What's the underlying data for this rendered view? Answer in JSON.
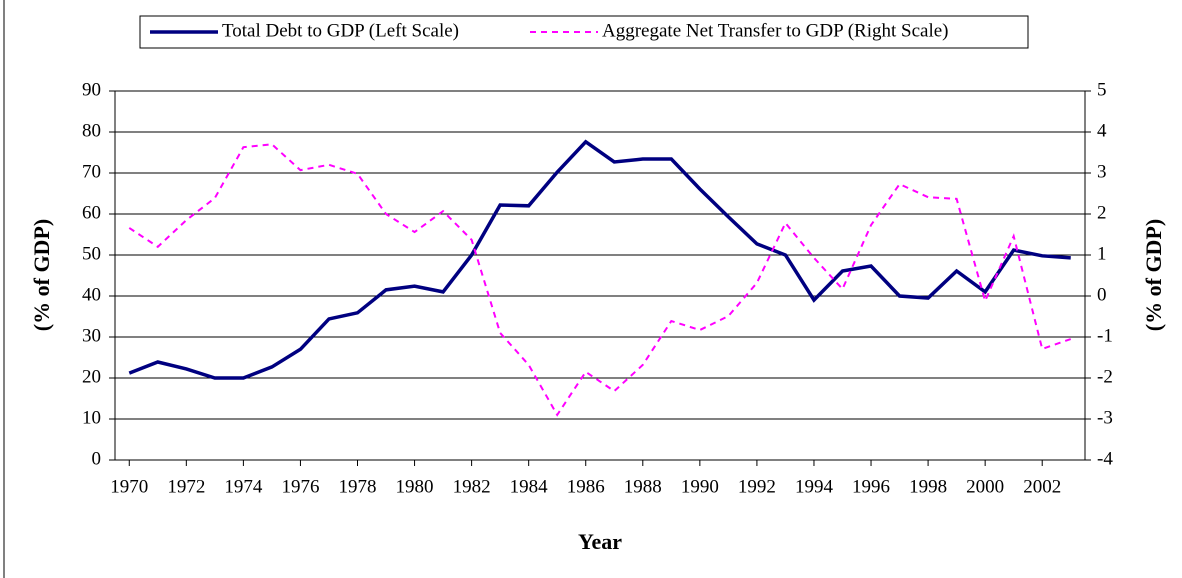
{
  "chart_data": {
    "type": "line",
    "x_label": "Year",
    "y_label": "(% of GDP)",
    "y2_label": "(% of GDP)",
    "x": [
      1970,
      1971,
      1972,
      1973,
      1974,
      1975,
      1976,
      1977,
      1978,
      1979,
      1980,
      1981,
      1982,
      1983,
      1984,
      1985,
      1986,
      1987,
      1988,
      1989,
      1990,
      1991,
      1992,
      1993,
      1994,
      1995,
      1996,
      1997,
      1998,
      1999,
      2000,
      2001,
      2002,
      2003
    ],
    "xlim": [
      1969.5,
      2003.5
    ],
    "xticks": [
      1970,
      1972,
      1974,
      1976,
      1978,
      1980,
      1982,
      1984,
      1986,
      1988,
      1990,
      1992,
      1994,
      1996,
      1998,
      2000,
      2002
    ],
    "ylim": [
      0,
      90
    ],
    "yticks": [
      0,
      10,
      20,
      30,
      40,
      50,
      60,
      70,
      80,
      90
    ],
    "y2lim": [
      -4,
      5
    ],
    "y2ticks": [
      -4,
      -3,
      -2,
      -1,
      0,
      1,
      2,
      3,
      4,
      5
    ],
    "grid": true,
    "legend": "top",
    "series": [
      {
        "name": "Total Debt to GDP (Left Scale)",
        "color": "#000080",
        "dash": false,
        "values": [
          21.2,
          23.9,
          22.2,
          20,
          20,
          22.7,
          27,
          34.4,
          35.9,
          41.5,
          42.4,
          41,
          50,
          62.2,
          62,
          70.2,
          77.6,
          72.7,
          73.4,
          73.4,
          66.1,
          59.3,
          52.7,
          50,
          39,
          46.1,
          47.3,
          40,
          39.5,
          46.1,
          41,
          51.2,
          49.8,
          49.3
        ]
      },
      {
        "name": "Aggregate Net Transfer to GDP (Right Scale)",
        "color": "#ff00ff",
        "dash": true,
        "axis": "y2",
        "values": [
          1.66,
          1.2,
          1.85,
          2.39,
          3.63,
          3.7,
          3.07,
          3.2,
          2.98,
          2.0,
          1.56,
          2.07,
          1.37,
          -0.9,
          -1.68,
          -2.9,
          -1.85,
          -2.32,
          -1.68,
          -0.61,
          -0.83,
          -0.49,
          0.32,
          1.78,
          0.93,
          0.17,
          1.73,
          2.73,
          2.41,
          2.37,
          -0.12,
          1.46,
          -1.29,
          -1.05
        ]
      }
    ]
  }
}
